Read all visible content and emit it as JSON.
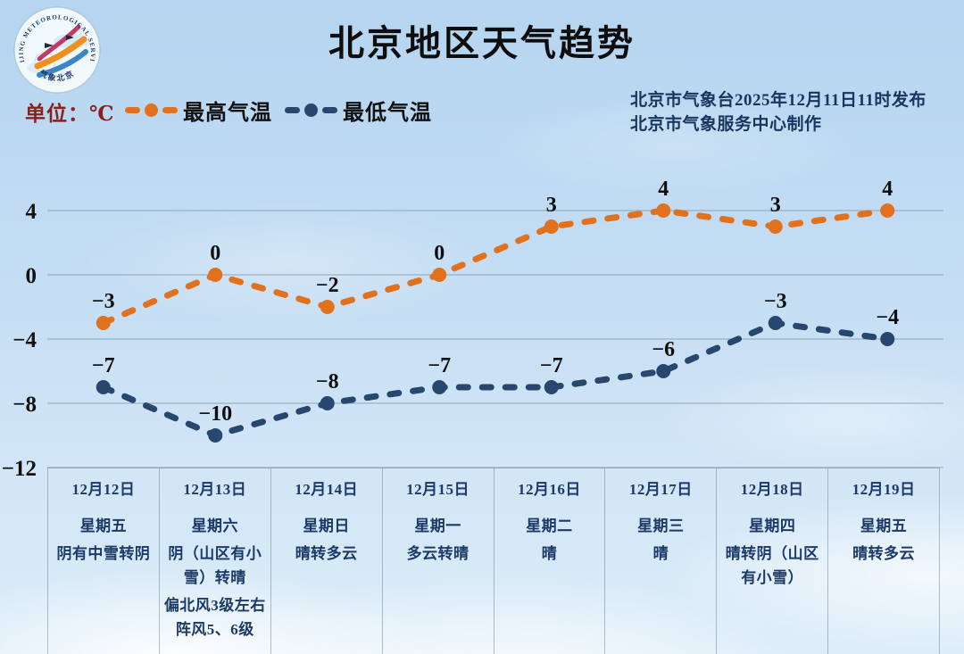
{
  "header": {
    "title": "北京地区天气趋势",
    "unit_label": "单位：℃",
    "unit_color": "#8a1f1b",
    "publisher_line1": "北京市气象台2025年12月11日11时发布",
    "publisher_line2": "北京市气象服务中心制作",
    "publisher_color": "#16355f",
    "logo": {
      "name": "beijing-meteorological-service-badge",
      "arc_text_top": "BEIJING METEOROLOGICAL SERVICE",
      "arc_text_bottom": "气象北京"
    }
  },
  "legend": [
    {
      "label": "最高气温",
      "color": "#e2711d"
    },
    {
      "label": "最低气温",
      "color": "#27476e"
    }
  ],
  "chart_data": {
    "type": "line",
    "categories": [
      "12月12日",
      "12月13日",
      "12月14日",
      "12月15日",
      "12月16日",
      "12月17日",
      "12月18日",
      "12月19日"
    ],
    "series": [
      {
        "name": "最高气温",
        "color": "#e2711d",
        "values": [
          -3,
          0,
          -2,
          0,
          3,
          4,
          3,
          4
        ]
      },
      {
        "name": "最低气温",
        "color": "#27476e",
        "values": [
          -7,
          -10,
          -8,
          -7,
          -7,
          -6,
          -3,
          -4
        ]
      }
    ],
    "title": "北京地区天气趋势",
    "xlabel": "",
    "ylabel": "℃",
    "yticks": [
      4,
      0,
      -4,
      -8,
      -12
    ],
    "ylim": [
      -12,
      6
    ],
    "grid": true,
    "line_style": "dashed",
    "marker": "circle",
    "legend_position": "top-left"
  },
  "table": {
    "columns": [
      {
        "date": "12月12日",
        "weekday": "星期五",
        "weather": [
          "阴有中雪转阴"
        ]
      },
      {
        "date": "12月13日",
        "weekday": "星期六",
        "weather": [
          "阴（山区有小雪）转晴",
          "偏北风3级左右 阵风5、6级"
        ]
      },
      {
        "date": "12月14日",
        "weekday": "星期日",
        "weather": [
          "晴转多云"
        ]
      },
      {
        "date": "12月15日",
        "weekday": "星期一",
        "weather": [
          "多云转晴"
        ]
      },
      {
        "date": "12月16日",
        "weekday": "星期二",
        "weather": [
          "晴"
        ]
      },
      {
        "date": "12月17日",
        "weekday": "星期三",
        "weather": [
          "晴"
        ]
      },
      {
        "date": "12月18日",
        "weekday": "星期四",
        "weather": [
          "晴转阴（山区有小雪）"
        ]
      },
      {
        "date": "12月19日",
        "weekday": "星期五",
        "weather": [
          "晴转多云"
        ]
      }
    ]
  }
}
